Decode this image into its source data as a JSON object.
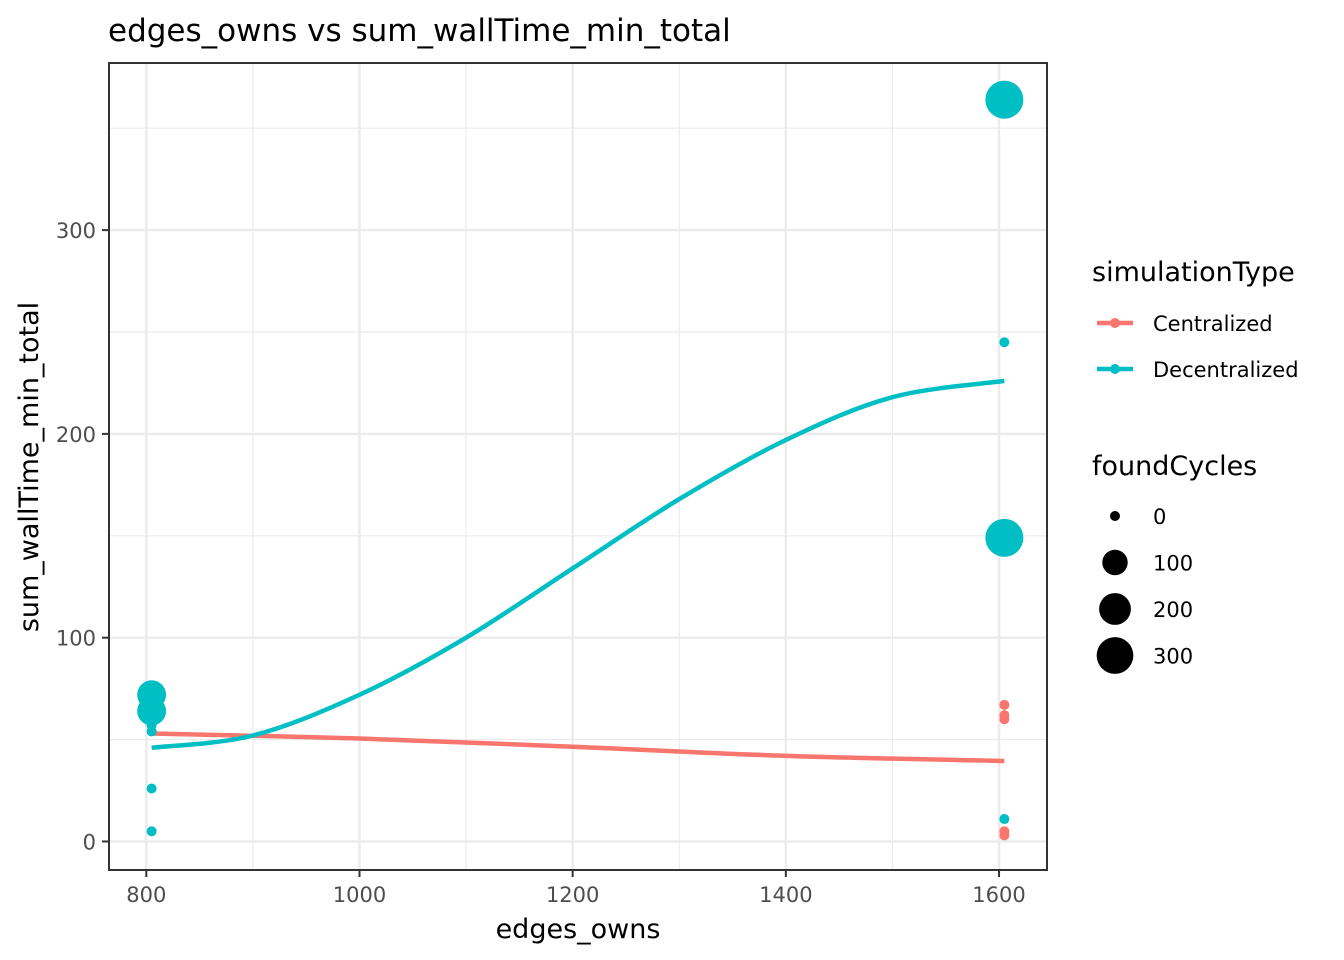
{
  "chart_data": {
    "type": "scatter",
    "title": "edges_owns  vs  sum_wallTime_min_total",
    "xlabel": "edges_owns",
    "ylabel": "sum_wallTime_min_total",
    "xlim": [
      765,
      1645
    ],
    "ylim": [
      -14,
      382
    ],
    "x_ticks": [
      800,
      1000,
      1200,
      1400,
      1600
    ],
    "y_ticks": [
      0,
      100,
      200,
      300
    ],
    "x_tick_labels": [
      "800",
      "1000",
      "1200",
      "1400",
      "1600"
    ],
    "y_tick_labels": [
      "0",
      "100",
      "200",
      "300"
    ],
    "grid": true,
    "legend_position": "right",
    "color_legend": {
      "title": "simulationType",
      "entries": [
        {
          "label": "Centralized",
          "color": "#F8766D"
        },
        {
          "label": "Decentralized",
          "color": "#00BFC4"
        }
      ]
    },
    "size_legend": {
      "title": "foundCycles",
      "entries": [
        {
          "label": "0",
          "value": 0
        },
        {
          "label": "100",
          "value": 100
        },
        {
          "label": "200",
          "value": 200
        },
        {
          "label": "300",
          "value": 300
        }
      ]
    },
    "series": [
      {
        "name": "Centralized",
        "color": "#F8766D",
        "points": [
          {
            "x": 805,
            "y": 60,
            "foundCycles": 0
          },
          {
            "x": 1605,
            "y": 67,
            "foundCycles": 0
          },
          {
            "x": 1605,
            "y": 62,
            "foundCycles": 0
          },
          {
            "x": 1605,
            "y": 60,
            "foundCycles": 0
          },
          {
            "x": 1605,
            "y": 5,
            "foundCycles": 0
          },
          {
            "x": 1605,
            "y": 3,
            "foundCycles": 0
          }
        ],
        "trend": [
          {
            "x": 805,
            "y": 53
          },
          {
            "x": 1000,
            "y": 50.5
          },
          {
            "x": 1200,
            "y": 46.5
          },
          {
            "x": 1400,
            "y": 42
          },
          {
            "x": 1605,
            "y": 39.5
          }
        ]
      },
      {
        "name": "Decentralized",
        "color": "#00BFC4",
        "points": [
          {
            "x": 805,
            "y": 72,
            "foundCycles": 150
          },
          {
            "x": 805,
            "y": 64,
            "foundCycles": 150
          },
          {
            "x": 805,
            "y": 57,
            "foundCycles": 0
          },
          {
            "x": 805,
            "y": 54,
            "foundCycles": 0
          },
          {
            "x": 805,
            "y": 26,
            "foundCycles": 0
          },
          {
            "x": 805,
            "y": 5,
            "foundCycles": 0
          },
          {
            "x": 1605,
            "y": 364,
            "foundCycles": 330
          },
          {
            "x": 1605,
            "y": 245,
            "foundCycles": 0
          },
          {
            "x": 1605,
            "y": 149,
            "foundCycles": 330
          },
          {
            "x": 1605,
            "y": 11,
            "foundCycles": 0
          }
        ],
        "trend": [
          {
            "x": 805,
            "y": 46
          },
          {
            "x": 900,
            "y": 52
          },
          {
            "x": 1000,
            "y": 72
          },
          {
            "x": 1100,
            "y": 100
          },
          {
            "x": 1200,
            "y": 134
          },
          {
            "x": 1300,
            "y": 168
          },
          {
            "x": 1400,
            "y": 197
          },
          {
            "x": 1500,
            "y": 218
          },
          {
            "x": 1605,
            "y": 226
          }
        ]
      }
    ]
  }
}
